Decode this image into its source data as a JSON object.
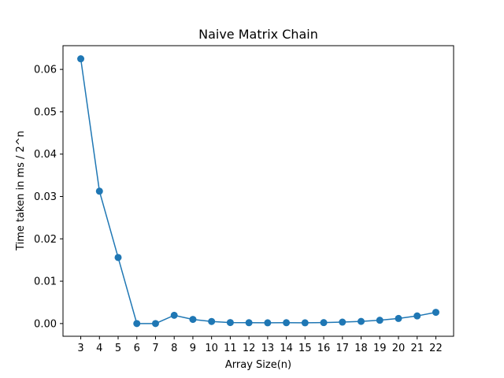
{
  "chart_data": {
    "type": "line",
    "title": "Naive Matrix Chain",
    "xlabel": "Array Size(n)",
    "ylabel": "Time taken in ms / 2^n",
    "x": [
      3,
      4,
      5,
      6,
      7,
      8,
      9,
      10,
      11,
      12,
      13,
      14,
      15,
      16,
      17,
      18,
      19,
      20,
      21,
      22
    ],
    "series": [
      {
        "values": [
          0.0625,
          0.03125,
          0.0156,
          0.0,
          0.0,
          0.00195,
          0.00098,
          0.00049,
          0.00024,
          0.0002,
          0.00018,
          0.0002,
          0.00018,
          0.00022,
          0.00034,
          0.00051,
          0.00078,
          0.0012,
          0.0018,
          0.00265
        ],
        "color": "#1f77b4",
        "marker": "circle"
      }
    ],
    "xticks": [
      "3",
      "4",
      "5",
      "6",
      "7",
      "8",
      "9",
      "10",
      "11",
      "12",
      "13",
      "14",
      "15",
      "16",
      "17",
      "18",
      "19",
      "20",
      "21",
      "22"
    ],
    "yticks": [
      "0.00",
      "0.01",
      "0.02",
      "0.03",
      "0.04",
      "0.05",
      "0.06"
    ],
    "ytick_values": [
      0.0,
      0.01,
      0.02,
      0.03,
      0.04,
      0.05,
      0.06
    ],
    "xlim": [
      2.05,
      22.95
    ],
    "ylim": [
      -0.003,
      0.0656
    ],
    "grid": false,
    "legend": "none"
  }
}
